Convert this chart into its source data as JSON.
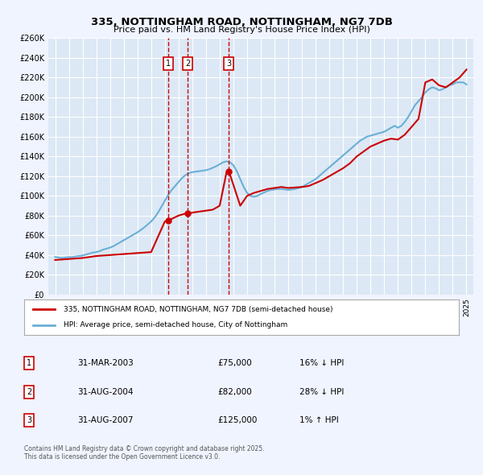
{
  "title": "335, NOTTINGHAM ROAD, NOTTINGHAM, NG7 7DB",
  "subtitle": "Price paid vs. HM Land Registry's House Price Index (HPI)",
  "background_color": "#f0f4ff",
  "plot_bg_color": "#dce8f5",
  "grid_color": "#ffffff",
  "ylabel": "",
  "ylim": [
    0,
    260000
  ],
  "yticks": [
    0,
    20000,
    40000,
    60000,
    80000,
    100000,
    120000,
    140000,
    160000,
    180000,
    200000,
    220000,
    240000,
    260000
  ],
  "ytick_labels": [
    "£0",
    "£20K",
    "£40K",
    "£60K",
    "£80K",
    "£100K",
    "£120K",
    "£140K",
    "£160K",
    "£180K",
    "£200K",
    "£220K",
    "£240K",
    "£260K"
  ],
  "xlim_start": 1994.5,
  "xlim_end": 2025.5,
  "xticks": [
    1995,
    1996,
    1997,
    1998,
    1999,
    2000,
    2001,
    2002,
    2003,
    2004,
    2005,
    2006,
    2007,
    2008,
    2009,
    2010,
    2011,
    2012,
    2013,
    2014,
    2015,
    2016,
    2017,
    2018,
    2019,
    2020,
    2021,
    2022,
    2023,
    2024,
    2025
  ],
  "hpi_color": "#6aafd6",
  "price_color": "#cc0000",
  "vline_color": "#cc0000",
  "transactions": [
    {
      "num": 1,
      "date_x": 2003.25,
      "price": 75000,
      "label": "1",
      "arrow": true
    },
    {
      "num": 2,
      "date_x": 2004.67,
      "price": 82000,
      "label": "2",
      "arrow": true
    },
    {
      "num": 3,
      "date_x": 2007.67,
      "price": 125000,
      "label": "3",
      "arrow": true
    }
  ],
  "legend_line1": "335, NOTTINGHAM ROAD, NOTTINGHAM, NG7 7DB (semi-detached house)",
  "legend_line2": "HPI: Average price, semi-detached house, City of Nottingham",
  "table_rows": [
    {
      "num": "1",
      "date": "31-MAR-2003",
      "price": "£75,000",
      "change": "16% ↓ HPI"
    },
    {
      "num": "2",
      "date": "31-AUG-2004",
      "price": "£82,000",
      "change": "28% ↓ HPI"
    },
    {
      "num": "3",
      "date": "31-AUG-2007",
      "price": "£125,000",
      "change": "1% ↑ HPI"
    }
  ],
  "footnote": "Contains HM Land Registry data © Crown copyright and database right 2025.\nThis data is licensed under the Open Government Licence v3.0.",
  "hpi_data_x": [
    1995.0,
    1995.25,
    1995.5,
    1995.75,
    1996.0,
    1996.25,
    1996.5,
    1996.75,
    1997.0,
    1997.25,
    1997.5,
    1997.75,
    1998.0,
    1998.25,
    1998.5,
    1998.75,
    1999.0,
    1999.25,
    1999.5,
    1999.75,
    2000.0,
    2000.25,
    2000.5,
    2000.75,
    2001.0,
    2001.25,
    2001.5,
    2001.75,
    2002.0,
    2002.25,
    2002.5,
    2002.75,
    2003.0,
    2003.25,
    2003.5,
    2003.75,
    2004.0,
    2004.25,
    2004.5,
    2004.75,
    2005.0,
    2005.25,
    2005.5,
    2005.75,
    2006.0,
    2006.25,
    2006.5,
    2006.75,
    2007.0,
    2007.25,
    2007.5,
    2007.75,
    2008.0,
    2008.25,
    2008.5,
    2008.75,
    2009.0,
    2009.25,
    2009.5,
    2009.75,
    2010.0,
    2010.25,
    2010.5,
    2010.75,
    2011.0,
    2011.25,
    2011.5,
    2011.75,
    2012.0,
    2012.25,
    2012.5,
    2012.75,
    2013.0,
    2013.25,
    2013.5,
    2013.75,
    2014.0,
    2014.25,
    2014.5,
    2014.75,
    2015.0,
    2015.25,
    2015.5,
    2015.75,
    2016.0,
    2016.25,
    2016.5,
    2016.75,
    2017.0,
    2017.25,
    2017.5,
    2017.75,
    2018.0,
    2018.25,
    2018.5,
    2018.75,
    2019.0,
    2019.25,
    2019.5,
    2019.75,
    2020.0,
    2020.25,
    2020.5,
    2020.75,
    2021.0,
    2021.25,
    2021.5,
    2021.75,
    2022.0,
    2022.25,
    2022.5,
    2022.75,
    2023.0,
    2023.25,
    2023.5,
    2023.75,
    2024.0,
    2024.25,
    2024.5,
    2024.75,
    2025.0
  ],
  "hpi_data_y": [
    38000,
    37500,
    37000,
    37500,
    37800,
    38000,
    38500,
    39000,
    39500,
    40500,
    41500,
    42500,
    43000,
    44000,
    45500,
    46500,
    47500,
    49000,
    51000,
    53000,
    55000,
    57000,
    59000,
    61000,
    63000,
    65500,
    68000,
    71000,
    74000,
    78000,
    83000,
    89000,
    95000,
    101000,
    106000,
    110000,
    114000,
    118000,
    121000,
    123000,
    124000,
    124500,
    125000,
    125500,
    126000,
    127000,
    128500,
    130000,
    132000,
    134000,
    135000,
    134000,
    131000,
    125000,
    117000,
    109000,
    103000,
    100000,
    99000,
    100000,
    102000,
    103500,
    105000,
    106000,
    106500,
    107000,
    107000,
    106500,
    106000,
    106500,
    107000,
    108000,
    109000,
    111000,
    113000,
    115000,
    117000,
    120000,
    123000,
    126000,
    129000,
    132000,
    135000,
    138000,
    141000,
    144000,
    147000,
    150000,
    153000,
    156000,
    158000,
    160000,
    161000,
    162000,
    163000,
    164000,
    165000,
    167000,
    169000,
    171000,
    169000,
    171000,
    175000,
    180000,
    186000,
    192000,
    196000,
    200000,
    205000,
    208000,
    210000,
    209000,
    207000,
    208000,
    210000,
    212000,
    213000,
    215000,
    215000,
    215000,
    213000
  ],
  "price_data_x": [
    1995.0,
    1995.5,
    1996.0,
    1996.5,
    1997.0,
    1997.5,
    1998.0,
    1999.0,
    2000.0,
    2001.0,
    2002.0,
    2003.0,
    2003.25,
    2004.0,
    2004.5,
    2004.67,
    2005.0,
    2005.5,
    2006.0,
    2006.5,
    2007.0,
    2007.5,
    2007.67,
    2008.5,
    2009.0,
    2009.5,
    2010.0,
    2010.5,
    2011.0,
    2011.5,
    2012.0,
    2012.5,
    2013.0,
    2013.5,
    2014.0,
    2014.5,
    2015.0,
    2015.5,
    2016.0,
    2016.5,
    2017.0,
    2017.5,
    2018.0,
    2018.5,
    2019.0,
    2019.5,
    2020.0,
    2020.5,
    2021.0,
    2021.5,
    2022.0,
    2022.5,
    2023.0,
    2023.5,
    2024.0,
    2024.5,
    2025.0
  ],
  "price_data_y": [
    35000,
    35500,
    36000,
    36500,
    37000,
    38000,
    39000,
    40000,
    41000,
    42000,
    43000,
    74000,
    75000,
    80000,
    82000,
    82000,
    83000,
    84000,
    85000,
    86000,
    90000,
    124000,
    125000,
    90000,
    100000,
    103000,
    105000,
    107000,
    108000,
    109000,
    108000,
    108500,
    109000,
    110000,
    113000,
    116000,
    120000,
    124000,
    128000,
    133000,
    140000,
    145000,
    150000,
    153000,
    156000,
    158000,
    157000,
    162000,
    170000,
    178000,
    215000,
    218000,
    212000,
    210000,
    215000,
    220000,
    228000
  ]
}
